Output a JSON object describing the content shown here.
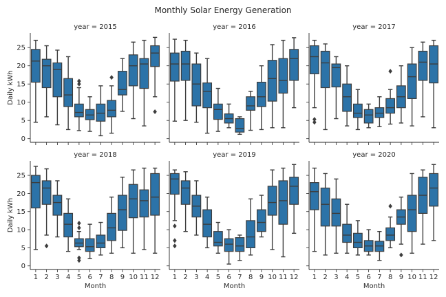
{
  "chart_data": {
    "type": "box",
    "title": "Monthly Solar Energy Generation",
    "xlabel": "Month",
    "ylabel": "Daily kWh",
    "ylim": [
      -1,
      29
    ],
    "yticks": [
      0,
      5,
      10,
      15,
      20,
      25
    ],
    "categories": [
      "1",
      "2",
      "3",
      "4",
      "5",
      "6",
      "7",
      "8",
      "9",
      "10",
      "11",
      "12"
    ],
    "colors": {
      "box_fill": "#2c73a8",
      "line": "#3d3d3d",
      "axis": "#262626"
    },
    "grid": false,
    "facets": [
      {
        "label": "year = 2015",
        "boxes": [
          {
            "month": "1",
            "whisker_low": 4.5,
            "q1": 15.5,
            "median": 21.3,
            "q3": 24.5,
            "whisker_high": 27.0,
            "outliers": []
          },
          {
            "month": "2",
            "whisker_low": 6.0,
            "q1": 14.0,
            "median": 20.0,
            "q3": 21.8,
            "whisker_high": 25.5,
            "outliers": []
          },
          {
            "month": "3",
            "whisker_low": 3.8,
            "q1": 11.5,
            "median": 19.0,
            "q3": 20.8,
            "whisker_high": 24.3,
            "outliers": []
          },
          {
            "month": "4",
            "whisker_low": 2.5,
            "q1": 8.8,
            "median": 12.0,
            "q3": 16.5,
            "whisker_high": 22.5,
            "outliers": []
          },
          {
            "month": "5",
            "whisker_low": 2.2,
            "q1": 6.0,
            "median": 7.2,
            "q3": 9.5,
            "whisker_high": 14.0,
            "outliers": [
              15.0,
              15.8
            ]
          },
          {
            "month": "6",
            "whisker_low": 2.0,
            "q1": 5.2,
            "median": 6.5,
            "q3": 8.0,
            "whisker_high": 11.5,
            "outliers": []
          },
          {
            "month": "7",
            "whisker_low": 0.8,
            "q1": 4.8,
            "median": 7.0,
            "q3": 9.5,
            "whisker_high": 14.5,
            "outliers": []
          },
          {
            "month": "8",
            "whisker_low": 1.5,
            "q1": 6.0,
            "median": 7.8,
            "q3": 10.5,
            "whisker_high": 14.5,
            "outliers": [
              16.8
            ]
          },
          {
            "month": "9",
            "whisker_low": 7.5,
            "q1": 12.0,
            "median": 13.5,
            "q3": 18.5,
            "whisker_high": 22.0,
            "outliers": []
          },
          {
            "month": "10",
            "whisker_low": 5.5,
            "q1": 14.5,
            "median": 20.0,
            "q3": 23.0,
            "whisker_high": 26.5,
            "outliers": []
          },
          {
            "month": "11",
            "whisker_low": 3.5,
            "q1": 13.8,
            "median": 20.5,
            "q3": 22.0,
            "whisker_high": 27.0,
            "outliers": []
          },
          {
            "month": "12",
            "whisker_low": 11.5,
            "q1": 19.8,
            "median": 23.5,
            "q3": 25.5,
            "whisker_high": 27.8,
            "outliers": [
              7.4
            ]
          }
        ]
      },
      {
        "label": "year = 2016",
        "boxes": [
          {
            "month": "1",
            "whisker_low": 4.8,
            "q1": 15.8,
            "median": 20.5,
            "q3": 23.5,
            "whisker_high": 27.3,
            "outliers": []
          },
          {
            "month": "2",
            "whisker_low": 5.0,
            "q1": 16.0,
            "median": 20.5,
            "q3": 24.0,
            "whisker_high": 27.0,
            "outliers": []
          },
          {
            "month": "3",
            "whisker_low": 4.5,
            "q1": 9.0,
            "median": 15.0,
            "q3": 20.5,
            "whisker_high": 23.5,
            "outliers": []
          },
          {
            "month": "4",
            "whisker_low": 1.5,
            "q1": 8.5,
            "median": 13.0,
            "q3": 15.3,
            "whisker_high": 22.0,
            "outliers": []
          },
          {
            "month": "5",
            "whisker_low": 2.0,
            "q1": 5.3,
            "median": 8.0,
            "q3": 9.5,
            "whisker_high": 13.8,
            "outliers": []
          },
          {
            "month": "6",
            "whisker_low": 3.0,
            "q1": 4.3,
            "median": 5.5,
            "q3": 6.8,
            "whisker_high": 9.5,
            "outliers": []
          },
          {
            "month": "7",
            "whisker_low": 1.2,
            "q1": 1.8,
            "median": 2.8,
            "q3": 5.5,
            "whisker_high": 6.0,
            "outliers": []
          },
          {
            "month": "8",
            "whisker_low": 2.3,
            "q1": 7.8,
            "median": 9.0,
            "q3": 11.5,
            "whisker_high": 13.0,
            "outliers": []
          },
          {
            "month": "9",
            "whisker_low": 2.5,
            "q1": 8.8,
            "median": 11.5,
            "q3": 15.5,
            "whisker_high": 20.0,
            "outliers": []
          },
          {
            "month": "10",
            "whisker_low": 3.0,
            "q1": 10.3,
            "median": 16.5,
            "q3": 21.5,
            "whisker_high": 25.8,
            "outliers": []
          },
          {
            "month": "11",
            "whisker_low": 3.0,
            "q1": 12.5,
            "median": 16.0,
            "q3": 22.0,
            "whisker_high": 27.0,
            "outliers": []
          },
          {
            "month": "12",
            "whisker_low": 8.5,
            "q1": 16.0,
            "median": 22.0,
            "q3": 24.5,
            "whisker_high": 27.7,
            "outliers": []
          }
        ]
      },
      {
        "label": "year = 2017",
        "boxes": [
          {
            "month": "1",
            "whisker_low": 8.5,
            "q1": 17.8,
            "median": 22.5,
            "q3": 25.5,
            "whisker_high": 27.0,
            "outliers": [
              4.5,
              5.3
            ]
          },
          {
            "month": "2",
            "whisker_low": 2.5,
            "q1": 14.0,
            "median": 20.8,
            "q3": 24.0,
            "whisker_high": 26.0,
            "outliers": []
          },
          {
            "month": "3",
            "whisker_low": 5.5,
            "q1": 14.2,
            "median": 19.5,
            "q3": 20.5,
            "whisker_high": 22.5,
            "outliers": []
          },
          {
            "month": "4",
            "whisker_low": 3.5,
            "q1": 7.5,
            "median": 11.5,
            "q3": 15.0,
            "whisker_high": 20.0,
            "outliers": []
          },
          {
            "month": "5",
            "whisker_low": 2.5,
            "q1": 5.8,
            "median": 7.0,
            "q3": 9.5,
            "whisker_high": 13.5,
            "outliers": []
          },
          {
            "month": "6",
            "whisker_low": 3.0,
            "q1": 4.3,
            "median": 6.5,
            "q3": 8.0,
            "whisker_high": 9.5,
            "outliers": []
          },
          {
            "month": "7",
            "whisker_low": 3.3,
            "q1": 5.8,
            "median": 7.0,
            "q3": 8.5,
            "whisker_high": 11.5,
            "outliers": []
          },
          {
            "month": "8",
            "whisker_low": 4.0,
            "q1": 7.0,
            "median": 8.5,
            "q3": 11.0,
            "whisker_high": 13.5,
            "outliers": [
              18.5
            ]
          },
          {
            "month": "9",
            "whisker_low": 4.3,
            "q1": 8.5,
            "median": 11.5,
            "q3": 14.5,
            "whisker_high": 20.0,
            "outliers": []
          },
          {
            "month": "10",
            "whisker_low": 3.5,
            "q1": 11.0,
            "median": 17.0,
            "q3": 20.5,
            "whisker_high": 25.0,
            "outliers": []
          },
          {
            "month": "11",
            "whisker_low": 6.0,
            "q1": 16.0,
            "median": 21.0,
            "q3": 24.0,
            "whisker_high": 26.5,
            "outliers": []
          },
          {
            "month": "12",
            "whisker_low": 3.0,
            "q1": 15.3,
            "median": 20.5,
            "q3": 25.5,
            "whisker_high": 27.0,
            "outliers": []
          }
        ]
      },
      {
        "label": "year = 2018",
        "boxes": [
          {
            "month": "1",
            "whisker_low": 4.5,
            "q1": 16.0,
            "median": 23.0,
            "q3": 25.0,
            "whisker_high": 27.5,
            "outliers": []
          },
          {
            "month": "2",
            "whisker_low": 8.5,
            "q1": 17.0,
            "median": 21.5,
            "q3": 23.5,
            "whisker_high": 26.8,
            "outliers": [
              5.5
            ]
          },
          {
            "month": "3",
            "whisker_low": 8.0,
            "q1": 14.0,
            "median": 17.5,
            "q3": 19.5,
            "whisker_high": 23.5,
            "outliers": []
          },
          {
            "month": "4",
            "whisker_low": 4.0,
            "q1": 8.0,
            "median": 11.5,
            "q3": 14.5,
            "whisker_high": 18.5,
            "outliers": []
          },
          {
            "month": "5",
            "whisker_low": 4.5,
            "q1": 5.3,
            "median": 6.3,
            "q3": 7.5,
            "whisker_high": 9.5,
            "outliers": [
              1.5,
              2.2,
              10.5,
              11.8
            ]
          },
          {
            "month": "6",
            "whisker_low": 2.0,
            "q1": 4.0,
            "median": 5.3,
            "q3": 7.5,
            "whisker_high": 11.5,
            "outliers": []
          },
          {
            "month": "7",
            "whisker_low": 3.0,
            "q1": 5.0,
            "median": 6.3,
            "q3": 8.5,
            "whisker_high": 12.0,
            "outliers": []
          },
          {
            "month": "8",
            "whisker_low": 3.5,
            "q1": 7.0,
            "median": 10.5,
            "q3": 14.5,
            "whisker_high": 19.0,
            "outliers": []
          },
          {
            "month": "9",
            "whisker_low": 5.0,
            "q1": 9.8,
            "median": 15.5,
            "q3": 19.5,
            "whisker_high": 24.5,
            "outliers": []
          },
          {
            "month": "10",
            "whisker_low": 3.5,
            "q1": 13.3,
            "median": 18.5,
            "q3": 22.5,
            "whisker_high": 26.5,
            "outliers": []
          },
          {
            "month": "11",
            "whisker_low": 4.5,
            "q1": 13.5,
            "median": 18.0,
            "q3": 21.0,
            "whisker_high": 27.0,
            "outliers": []
          },
          {
            "month": "12",
            "whisker_low": 3.5,
            "q1": 14.0,
            "median": 19.0,
            "q3": 25.5,
            "whisker_high": 27.0,
            "outliers": []
          }
        ]
      },
      {
        "label": "year = 2019",
        "boxes": [
          {
            "month": "1",
            "whisker_low": 12.5,
            "q1": 19.8,
            "median": 24.0,
            "q3": 25.5,
            "whisker_high": 26.5,
            "outliers": [
              5.5,
              7.0,
              11.0
            ]
          },
          {
            "month": "2",
            "whisker_low": 9.5,
            "q1": 17.0,
            "median": 21.5,
            "q3": 23.5,
            "whisker_high": 26.0,
            "outliers": []
          },
          {
            "month": "3",
            "whisker_low": 8.5,
            "q1": 13.5,
            "median": 16.5,
            "q3": 19.5,
            "whisker_high": 23.5,
            "outliers": []
          },
          {
            "month": "4",
            "whisker_low": 5.0,
            "q1": 8.0,
            "median": 11.5,
            "q3": 15.5,
            "whisker_high": 19.0,
            "outliers": []
          },
          {
            "month": "5",
            "whisker_low": 3.5,
            "q1": 5.5,
            "median": 6.5,
            "q3": 9.5,
            "whisker_high": 12.0,
            "outliers": []
          },
          {
            "month": "6",
            "whisker_low": 0.5,
            "q1": 4.0,
            "median": 6.0,
            "q3": 7.5,
            "whisker_high": 10.0,
            "outliers": []
          },
          {
            "month": "7",
            "whisker_low": 1.5,
            "q1": 4.0,
            "median": 5.5,
            "q3": 7.8,
            "whisker_high": 8.5,
            "outliers": []
          },
          {
            "month": "8",
            "whisker_low": 3.0,
            "q1": 5.0,
            "median": 8.0,
            "q3": 12.5,
            "whisker_high": 18.5,
            "outliers": []
          },
          {
            "month": "9",
            "whisker_low": 8.0,
            "q1": 9.5,
            "median": 12.0,
            "q3": 15.5,
            "whisker_high": 19.5,
            "outliers": []
          },
          {
            "month": "10",
            "whisker_low": 4.5,
            "q1": 14.0,
            "median": 17.5,
            "q3": 22.0,
            "whisker_high": 26.5,
            "outliers": []
          },
          {
            "month": "11",
            "whisker_low": 2.5,
            "q1": 11.5,
            "median": 18.0,
            "q3": 23.5,
            "whisker_high": 27.0,
            "outliers": []
          },
          {
            "month": "12",
            "whisker_low": 9.0,
            "q1": 17.0,
            "median": 22.0,
            "q3": 24.5,
            "whisker_high": 28.0,
            "outliers": []
          }
        ]
      },
      {
        "label": "year = 2020",
        "boxes": [
          {
            "month": "1",
            "whisker_low": 4.0,
            "q1": 15.5,
            "median": 20.5,
            "q3": 23.0,
            "whisker_high": 27.0,
            "outliers": []
          },
          {
            "month": "2",
            "whisker_low": 3.0,
            "q1": 11.0,
            "median": 17.0,
            "q3": 21.5,
            "whisker_high": 25.5,
            "outliers": []
          },
          {
            "month": "3",
            "whisker_low": 3.5,
            "q1": 11.0,
            "median": 14.5,
            "q3": 18.5,
            "whisker_high": 24.0,
            "outliers": []
          },
          {
            "month": "4",
            "whisker_low": 3.5,
            "q1": 6.5,
            "median": 8.5,
            "q3": 11.5,
            "whisker_high": 17.0,
            "outliers": []
          },
          {
            "month": "5",
            "whisker_low": 3.0,
            "q1": 5.0,
            "median": 6.5,
            "q3": 9.0,
            "whisker_high": 12.5,
            "outliers": []
          },
          {
            "month": "6",
            "whisker_low": 3.0,
            "q1": 4.0,
            "median": 5.5,
            "q3": 7.0,
            "whisker_high": 10.0,
            "outliers": []
          },
          {
            "month": "7",
            "whisker_low": 1.5,
            "q1": 4.0,
            "median": 5.5,
            "q3": 6.8,
            "whisker_high": 9.5,
            "outliers": []
          },
          {
            "month": "8",
            "whisker_low": 5.0,
            "q1": 7.0,
            "median": 8.5,
            "q3": 10.5,
            "whisker_high": 13.5,
            "outliers": [
              16.5
            ]
          },
          {
            "month": "9",
            "whisker_low": 6.0,
            "q1": 11.5,
            "median": 13.5,
            "q3": 15.5,
            "whisker_high": 19.0,
            "outliers": [
              3.0
            ]
          },
          {
            "month": "10",
            "whisker_low": 3.5,
            "q1": 9.5,
            "median": 15.5,
            "q3": 19.5,
            "whisker_high": 25.5,
            "outliers": []
          },
          {
            "month": "11",
            "whisker_low": 6.0,
            "q1": 14.5,
            "median": 19.5,
            "q3": 24.5,
            "whisker_high": 26.5,
            "outliers": []
          },
          {
            "month": "12",
            "whisker_low": 7.0,
            "q1": 16.5,
            "median": 21.5,
            "q3": 25.5,
            "whisker_high": 28.0,
            "outliers": []
          }
        ]
      }
    ]
  }
}
